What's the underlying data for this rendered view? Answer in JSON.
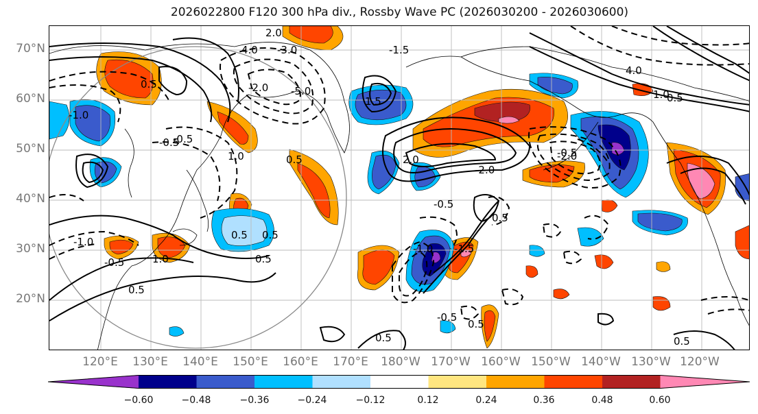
{
  "title": "2026022800 F120 300 hPa div., Rossby Wave PC (2026030200 - 2026030600)",
  "lat_labels": [
    "70°N",
    "60°N",
    "50°N",
    "40°N",
    "30°N",
    "20°N"
  ],
  "lon_labels": [
    "120°E",
    "130°E",
    "140°E",
    "150°E",
    "160°E",
    "170°E",
    "180°W",
    "170°W",
    "160°W",
    "150°W",
    "140°W",
    "130°W",
    "120°W"
  ],
  "colorbar": {
    "tick_labels": [
      "−0.60",
      "−0.48",
      "−0.36",
      "−0.24",
      "−0.12",
      "0.12",
      "0.24",
      "0.36",
      "0.48",
      "0.60"
    ],
    "colors": [
      "#9932cc",
      "#00008b",
      "#3a5bcc",
      "#00bfff",
      "#b0e0ff",
      "#ffffff",
      "#ffe680",
      "#ffa500",
      "#ff4500",
      "#b22222",
      "#ff88b4"
    ]
  },
  "contour_labels": [
    "2.0",
    "4.0",
    "-3.0",
    "-2.0",
    "-5.0",
    "-1.0",
    "0.5",
    "-0.5",
    "1.0",
    "-1.5",
    "2.0",
    "-2.0",
    "1.5",
    "4.0",
    "1.0",
    "-2.0",
    "0.5",
    "-0.5",
    "0.5",
    "0.5",
    "-0.5",
    "0.5",
    "0.5",
    "0.5",
    "-0.5",
    "-1.0",
    "0.5",
    "-1.5",
    "1.0",
    "-1.0",
    "0.5",
    "-0.5",
    "0.5",
    "-0.5",
    "0.5"
  ]
}
